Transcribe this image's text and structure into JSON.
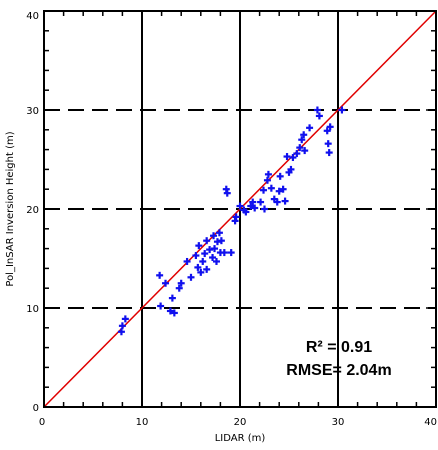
{
  "chart_data": {
    "type": "scatter",
    "xlabel": "LIDAR (m)",
    "ylabel": "Pol_InSAR Inversion Height (m)",
    "xlim": [
      0,
      40
    ],
    "ylim": [
      0,
      40
    ],
    "x_ticks": [
      "0",
      "10",
      "20",
      "30",
      "40"
    ],
    "y_ticks": [
      "0",
      "10",
      "20",
      "30",
      "40"
    ],
    "vertical_lines_solid": [
      10,
      20,
      30
    ],
    "horizontal_lines_dashed": [
      10,
      20,
      30
    ],
    "reference_line": {
      "from": [
        0,
        0
      ],
      "to": [
        40,
        40
      ],
      "color": "#e00000"
    },
    "marker_color": "#1010ee",
    "annotation": {
      "r2": "R² = 0.91",
      "rmse": "RMSE= 2.04m"
    },
    "series": [
      {
        "points": [
          [
            7.9,
            7.6
          ],
          [
            8.0,
            8.2
          ],
          [
            8.3,
            8.9
          ],
          [
            11.8,
            13.3
          ],
          [
            11.9,
            10.2
          ],
          [
            12.4,
            12.5
          ],
          [
            12.9,
            9.7
          ],
          [
            13.1,
            11.0
          ],
          [
            13.3,
            9.5
          ],
          [
            13.8,
            12.0
          ],
          [
            14.0,
            12.5
          ],
          [
            14.6,
            14.7
          ],
          [
            15.0,
            13.1
          ],
          [
            15.5,
            15.3
          ],
          [
            15.7,
            14.1
          ],
          [
            15.8,
            16.3
          ],
          [
            16.0,
            13.6
          ],
          [
            16.2,
            14.7
          ],
          [
            16.4,
            15.5
          ],
          [
            16.6,
            13.9
          ],
          [
            16.6,
            16.8
          ],
          [
            16.9,
            15.9
          ],
          [
            17.2,
            15.1
          ],
          [
            17.3,
            17.3
          ],
          [
            17.4,
            16.0
          ],
          [
            17.6,
            14.7
          ],
          [
            17.7,
            16.7
          ],
          [
            17.9,
            17.6
          ],
          [
            18.0,
            15.6
          ],
          [
            18.1,
            16.8
          ],
          [
            18.4,
            15.6
          ],
          [
            18.6,
            22.0
          ],
          [
            18.7,
            21.6
          ],
          [
            19.1,
            15.6
          ],
          [
            19.5,
            18.8
          ],
          [
            19.6,
            19.2
          ],
          [
            20.0,
            20.3
          ],
          [
            20.4,
            19.9
          ],
          [
            20.6,
            19.7
          ],
          [
            21.1,
            20.3
          ],
          [
            21.3,
            20.7
          ],
          [
            21.5,
            20.1
          ],
          [
            22.1,
            20.7
          ],
          [
            22.4,
            21.9
          ],
          [
            22.5,
            20.0
          ],
          [
            22.8,
            22.9
          ],
          [
            22.9,
            23.5
          ],
          [
            23.2,
            22.1
          ],
          [
            23.5,
            21.0
          ],
          [
            23.8,
            20.7
          ],
          [
            24.0,
            21.8
          ],
          [
            24.1,
            23.3
          ],
          [
            24.4,
            22.0
          ],
          [
            24.6,
            20.8
          ],
          [
            24.8,
            25.3
          ],
          [
            25.0,
            23.7
          ],
          [
            25.2,
            24.0
          ],
          [
            25.4,
            25.2
          ],
          [
            25.8,
            25.6
          ],
          [
            26.1,
            26.2
          ],
          [
            26.3,
            27.0
          ],
          [
            26.5,
            27.5
          ],
          [
            26.6,
            25.9
          ],
          [
            27.1,
            28.2
          ],
          [
            27.9,
            30.0
          ],
          [
            28.1,
            29.4
          ],
          [
            28.9,
            27.9
          ],
          [
            29.2,
            28.3
          ],
          [
            29.0,
            26.6
          ],
          [
            29.1,
            25.7
          ],
          [
            30.4,
            30.0
          ]
        ]
      }
    ]
  }
}
